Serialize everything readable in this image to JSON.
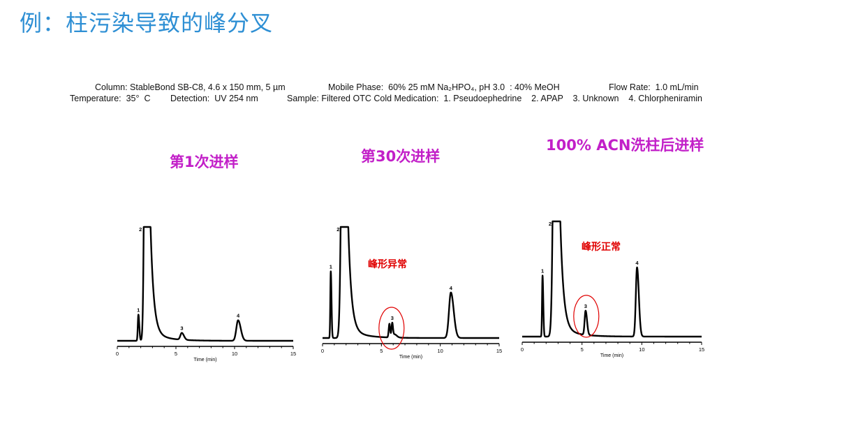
{
  "heading": "例：柱污染导致的峰分叉",
  "conditions": {
    "line1": [
      "Column: StableBond SB-C8, 4.6 x 150 mm, 5 µm",
      "Mobile Phase:  60% 25 mM Na₂HPO₄, pH 3.0  : 40% MeOH",
      "Flow Rate:  1.0 mL/min"
    ],
    "line2": [
      "Temperature:  35°  C",
      "Detection:  UV 254 nm",
      "Sample: Filtered OTC Cold Medication:  1. Pseudoephedrine    2. APAP    3. Unknown    4. Chlorpheniramin"
    ]
  },
  "annotations": {
    "abnormal": "峰形异常",
    "normal": "峰形正常"
  },
  "colors": {
    "heading": "#2e8fd4",
    "chart_title": "#c21fc8",
    "annotation": "#e00000",
    "trace": "#000000"
  },
  "chart_data": [
    {
      "type": "line",
      "title": "第1次进样",
      "xlabel": "Time (min)",
      "xlim": [
        0,
        15
      ],
      "xticks": [
        "0",
        "5",
        "10",
        "15"
      ],
      "grid": false,
      "peaks": [
        {
          "label": "1",
          "time": 1.8,
          "height": 23,
          "width_min": 0.05
        },
        {
          "label": "2",
          "time": 2.45,
          "height": 400,
          "width_min": 0.12,
          "tailing": true
        },
        {
          "label": "3",
          "time": 5.5,
          "height": 6,
          "width_min": 0.12
        },
        {
          "label": "4",
          "time": 10.3,
          "height": 18,
          "width_min": 0.15
        }
      ]
    },
    {
      "type": "line",
      "title": "第30次进样",
      "xlabel": "Time (min)",
      "xlim": [
        0,
        15
      ],
      "xticks": [
        "0",
        "5",
        "10",
        "15"
      ],
      "grid": false,
      "highlight_peak": "3",
      "annotation": "abnormal",
      "peaks": [
        {
          "label": "1",
          "time": 0.7,
          "height": 60,
          "width_min": 0.04
        },
        {
          "label": "2",
          "time": 1.8,
          "height": 400,
          "width_min": 0.16,
          "tailing": true
        },
        {
          "label": "3",
          "time": 5.8,
          "height": 12,
          "width_min": 0.12,
          "split": true
        },
        {
          "label": "4",
          "time": 10.9,
          "height": 41,
          "width_min": 0.16
        }
      ]
    },
    {
      "type": "line",
      "title": "100% ACN洗柱后进样",
      "xlabel": "Time (min)",
      "xlim": [
        0,
        15
      ],
      "xticks": [
        "0",
        "5",
        "10",
        "15"
      ],
      "grid": false,
      "highlight_peak": "3",
      "annotation": "normal",
      "peaks": [
        {
          "label": "1",
          "time": 1.7,
          "height": 53,
          "width_min": 0.04
        },
        {
          "label": "2",
          "time": 2.8,
          "height": 400,
          "width_min": 0.16,
          "tailing": true
        },
        {
          "label": "3",
          "time": 5.3,
          "height": 21,
          "width_min": 0.08
        },
        {
          "label": "4",
          "time": 9.6,
          "height": 60,
          "width_min": 0.1
        }
      ]
    }
  ]
}
